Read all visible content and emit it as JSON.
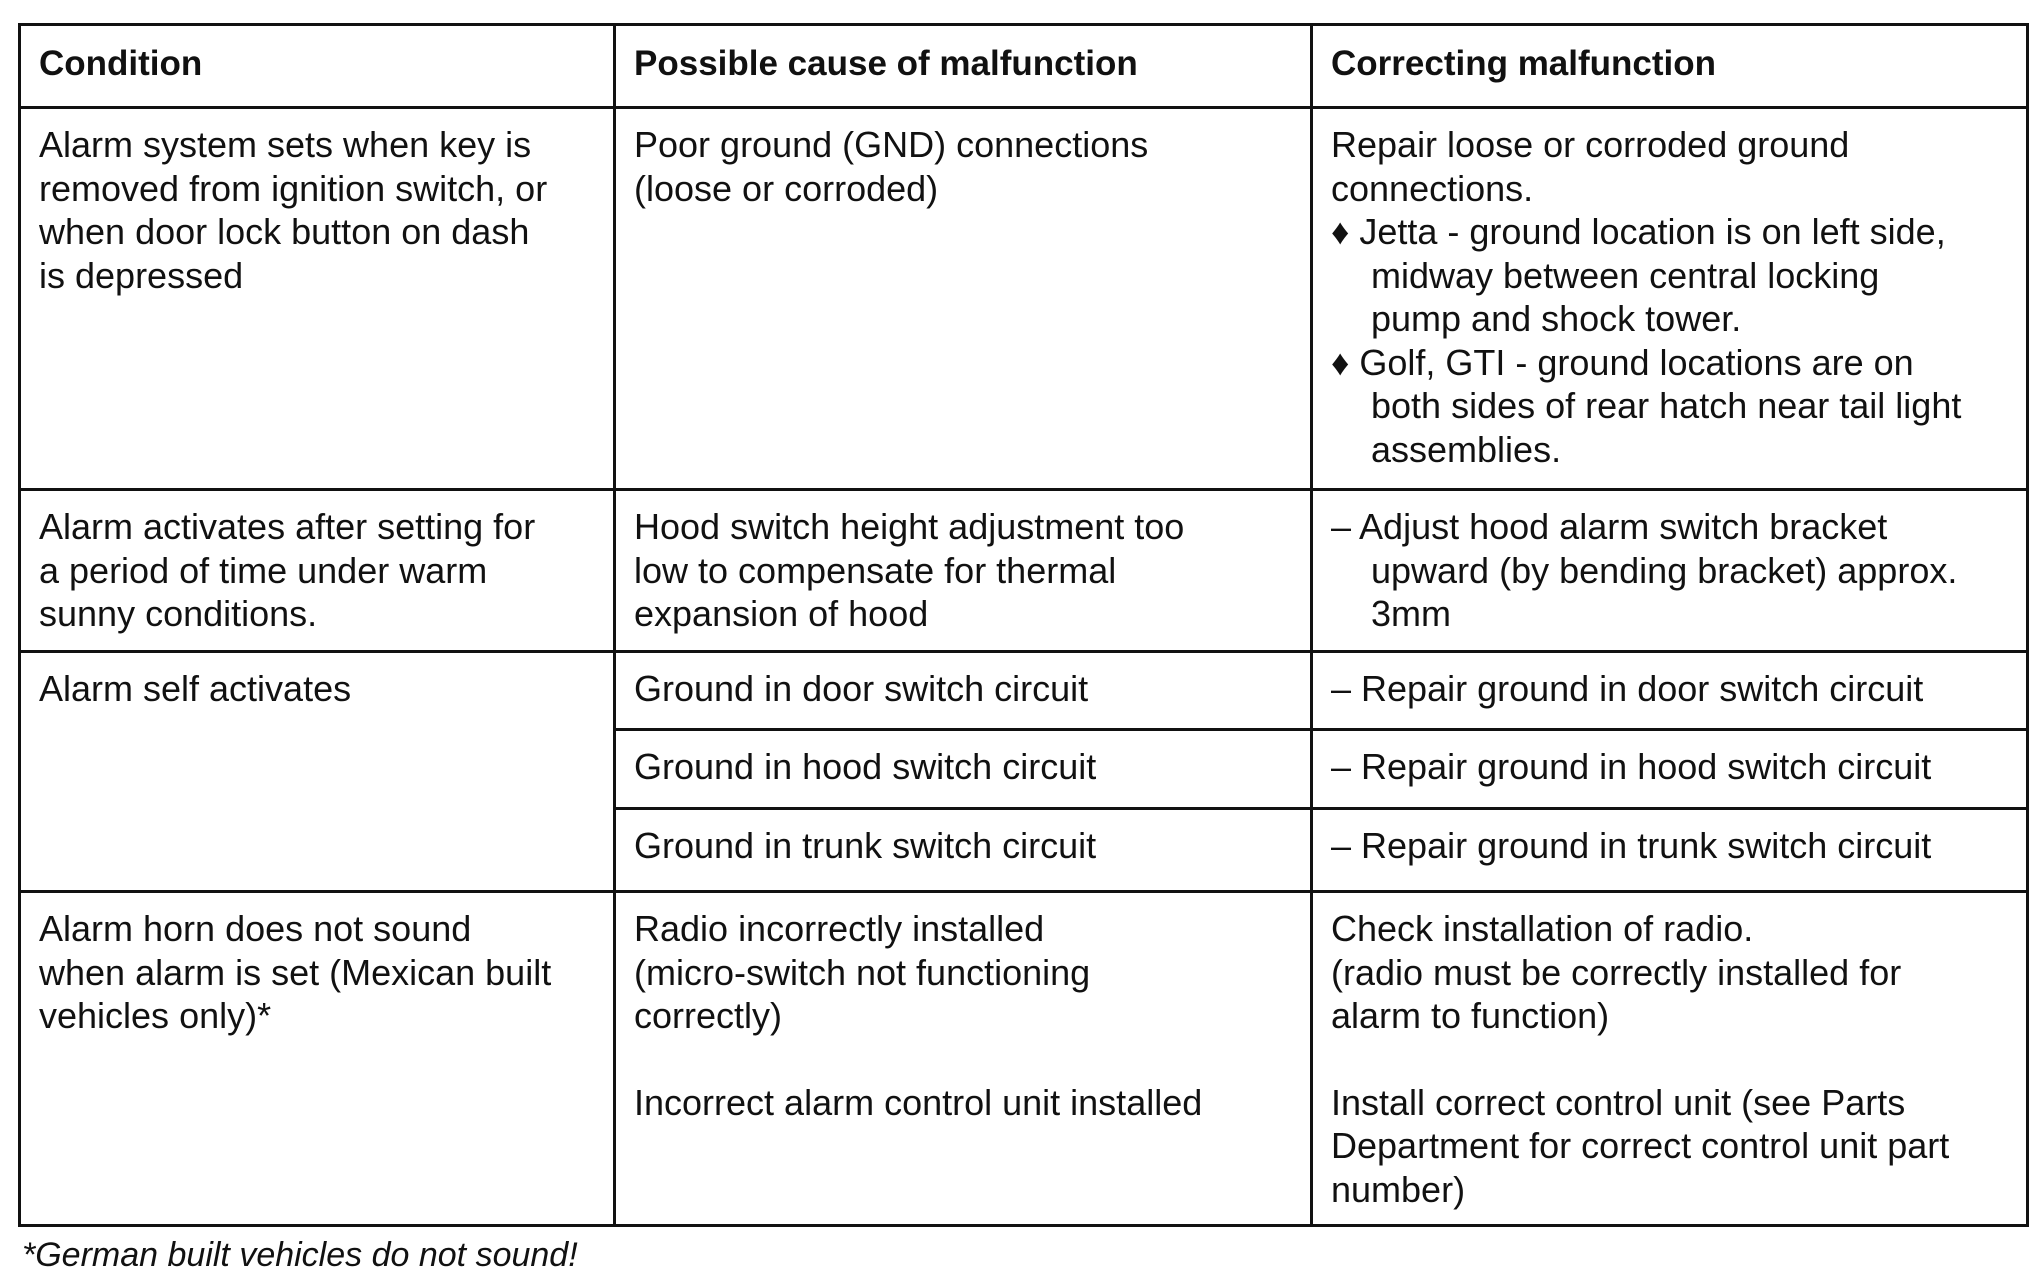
{
  "headers": [
    "Condition",
    "Possible cause of malfunction",
    "Correcting malfunction"
  ],
  "rows": [
    {
      "condition": [
        "Alarm system sets when key is",
        "removed from ignition switch, or",
        "when door lock button on dash",
        "is depressed"
      ],
      "cause": [
        "Poor ground (GND) connections",
        "(loose or corroded)"
      ],
      "correction": [
        "Repair loose or corroded ground",
        "connections.",
        "♦ Jetta - ground location is on left side,",
        "midway between central locking",
        "pump and shock tower.",
        "♦ Golf, GTI - ground locations are on",
        "both sides of rear hatch near tail light",
        "assemblies."
      ]
    },
    {
      "condition": [
        "Alarm activates after setting for",
        "a period of time under warm",
        "sunny conditions."
      ],
      "cause": [
        "Hood switch height adjustment too",
        "low to compensate for thermal",
        "expansion of hood"
      ],
      "correction": [
        "– Adjust hood alarm switch bracket",
        "upward (by bending bracket) approx.",
        "3mm"
      ]
    },
    {
      "condition": [
        "Alarm self activates"
      ],
      "subrows": [
        {
          "cause": [
            "Ground in door switch circuit"
          ],
          "correction": [
            "– Repair ground in door switch circuit"
          ]
        },
        {
          "cause": [
            "Ground in hood switch circuit"
          ],
          "correction": [
            "– Repair ground in hood switch circuit"
          ]
        },
        {
          "cause": [
            "Ground in trunk switch circuit"
          ],
          "correction": [
            "– Repair ground in trunk switch circuit"
          ]
        }
      ]
    },
    {
      "condition": [
        "Alarm horn does not sound",
        "when alarm is set (Mexican built",
        "vehicles only)*"
      ],
      "cause": [
        "Radio incorrectly installed",
        "(micro-switch not functioning",
        "correctly)",
        "",
        "Incorrect alarm control unit installed"
      ],
      "correction": [
        "Check installation of radio.",
        "(radio must be correctly installed for",
        "alarm to function)",
        "",
        "Install correct control unit (see Parts",
        "Department for correct control unit part",
        "number)"
      ]
    }
  ],
  "footnote": "*German built vehicles do not sound!"
}
